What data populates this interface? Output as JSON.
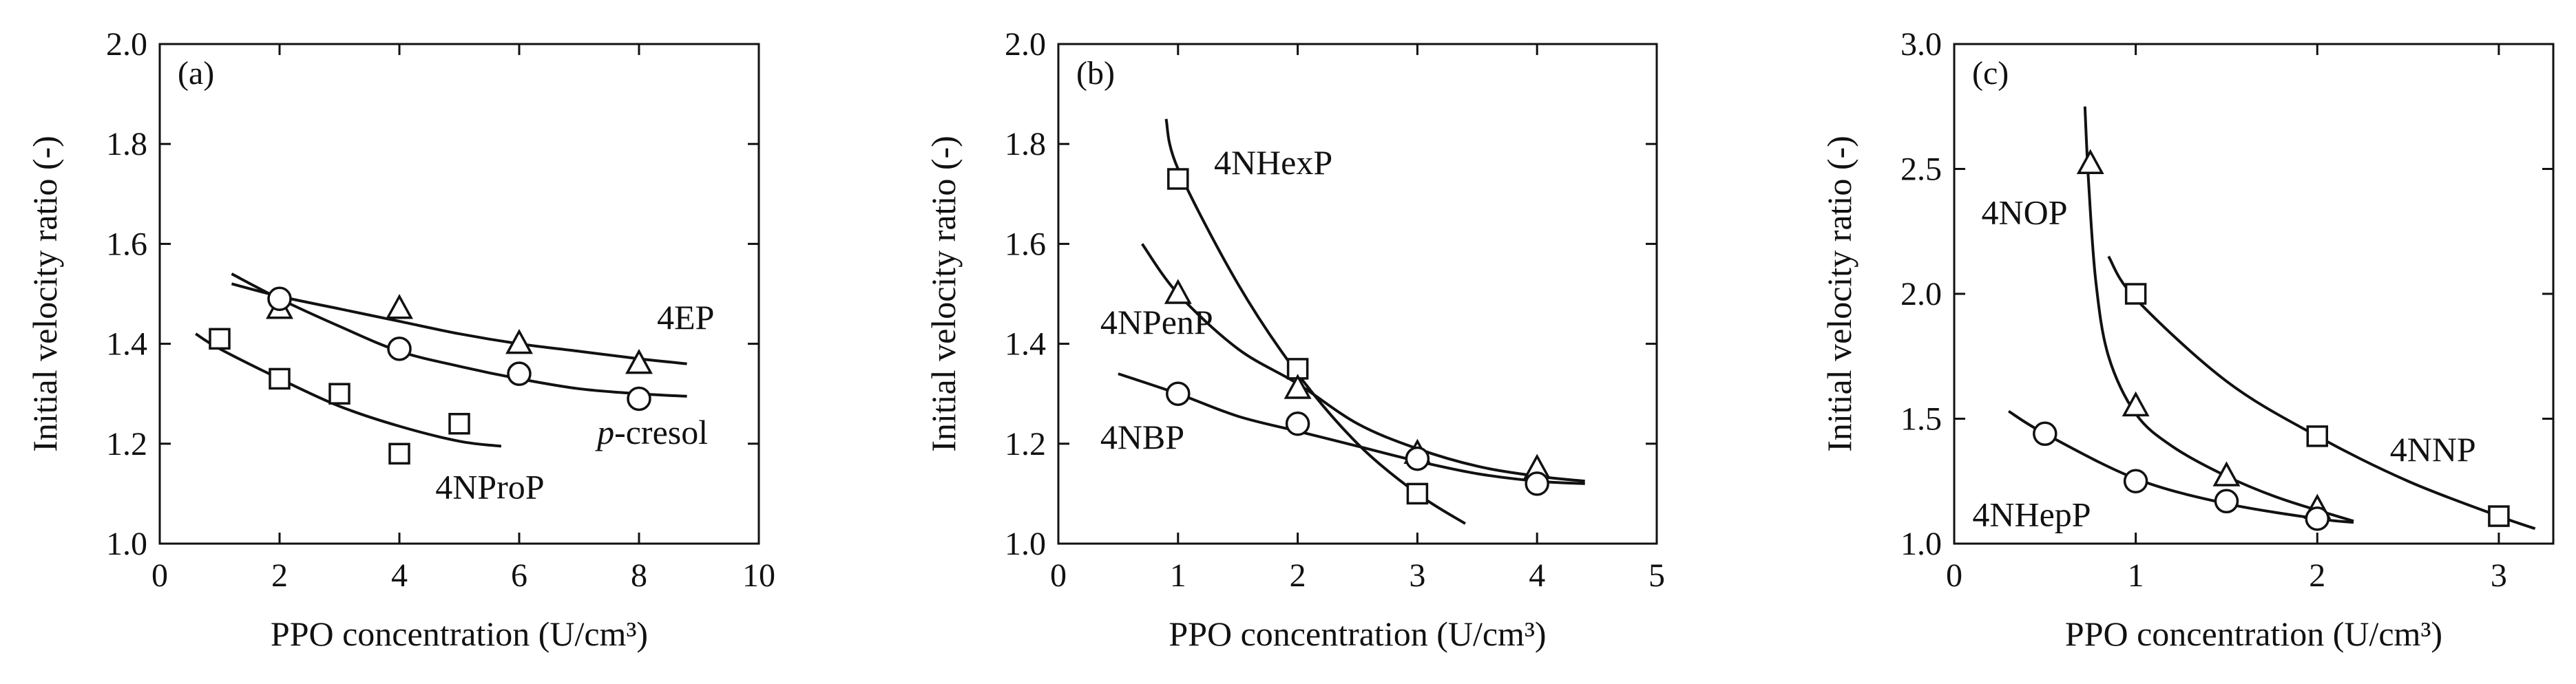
{
  "chart_data": [
    {
      "type": "scatter",
      "panel": "(a)",
      "xlabel": "PPO concentration (U/cm³)",
      "ylabel": "Initial velocity ratio (-)",
      "xlim": [
        0,
        10
      ],
      "ylim": [
        1.0,
        2.0
      ],
      "xticks": [
        0,
        2,
        4,
        6,
        8,
        10
      ],
      "yticks": [
        1.0,
        1.2,
        1.4,
        1.6,
        1.8,
        2.0
      ],
      "xtick_labels": [
        "0",
        "2",
        "4",
        "6",
        "8",
        "10"
      ],
      "ytick_labels": [
        "1.0",
        "1.2",
        "1.4",
        "1.6",
        "1.8",
        "2.0"
      ],
      "series": [
        {
          "name": "4EP",
          "label_parts": [
            "4EP"
          ],
          "marker": "triangle",
          "x": [
            2,
            4,
            6,
            8
          ],
          "y": [
            1.47,
            1.47,
            1.4,
            1.36
          ],
          "fit_x": [
            1.2,
            2,
            3,
            4,
            5,
            6,
            7,
            8,
            8.8
          ],
          "fit_y": [
            1.52,
            1.495,
            1.47,
            1.445,
            1.42,
            1.4,
            1.385,
            1.37,
            1.36
          ],
          "label_pos": [
            8.3,
            1.43
          ]
        },
        {
          "name": "p-cresol",
          "label_parts": [
            "p",
            "-cresol"
          ],
          "marker": "circle",
          "x": [
            2,
            4,
            6,
            8
          ],
          "y": [
            1.49,
            1.39,
            1.34,
            1.29
          ],
          "fit_x": [
            1.2,
            2,
            3,
            4,
            5,
            6,
            7,
            8,
            8.8
          ],
          "fit_y": [
            1.54,
            1.49,
            1.435,
            1.385,
            1.355,
            1.33,
            1.31,
            1.3,
            1.295
          ],
          "label_pos": [
            7.3,
            1.2
          ]
        },
        {
          "name": "4NProP",
          "label_parts": [
            "4NProP"
          ],
          "marker": "square",
          "x": [
            1,
            2,
            3,
            4,
            5
          ],
          "y": [
            1.41,
            1.33,
            1.3,
            1.18,
            1.24
          ],
          "fit_x": [
            0.6,
            1,
            2,
            3,
            4,
            5,
            5.7
          ],
          "fit_y": [
            1.42,
            1.39,
            1.33,
            1.275,
            1.235,
            1.205,
            1.195
          ],
          "label_pos": [
            4.6,
            1.09
          ]
        }
      ]
    },
    {
      "type": "scatter",
      "panel": "(b)",
      "xlabel": "PPO concentration (U/cm³)",
      "ylabel": "Initial velocity ratio (-)",
      "xlim": [
        0,
        5
      ],
      "ylim": [
        1.0,
        2.0
      ],
      "xticks": [
        0,
        1,
        2,
        3,
        4,
        5
      ],
      "yticks": [
        1.0,
        1.2,
        1.4,
        1.6,
        1.8,
        2.0
      ],
      "xtick_labels": [
        "0",
        "1",
        "2",
        "3",
        "4",
        "5"
      ],
      "ytick_labels": [
        "1.0",
        "1.2",
        "1.4",
        "1.6",
        "1.8",
        "2.0"
      ],
      "series": [
        {
          "name": "4NHexP",
          "label_parts": [
            "4NHexP"
          ],
          "marker": "square",
          "x": [
            1,
            2,
            3
          ],
          "y": [
            1.73,
            1.35,
            1.1
          ],
          "fit_x": [
            0.9,
            1,
            1.5,
            2,
            2.5,
            3,
            3.4
          ],
          "fit_y": [
            1.85,
            1.75,
            1.52,
            1.34,
            1.2,
            1.1,
            1.04
          ],
          "label_pos": [
            1.3,
            1.74
          ]
        },
        {
          "name": "4NPenP",
          "label_parts": [
            "4NPenP"
          ],
          "marker": "triangle",
          "x": [
            1,
            2,
            3,
            4
          ],
          "y": [
            1.5,
            1.31,
            1.18,
            1.15
          ],
          "fit_x": [
            0.7,
            1,
            1.5,
            2,
            2.5,
            3,
            3.5,
            4,
            4.4
          ],
          "fit_y": [
            1.6,
            1.5,
            1.39,
            1.32,
            1.24,
            1.19,
            1.155,
            1.135,
            1.125
          ],
          "label_pos": [
            0.35,
            1.42
          ]
        },
        {
          "name": "4NBP",
          "label_parts": [
            "4NBP"
          ],
          "marker": "circle",
          "x": [
            1,
            2,
            3,
            4
          ],
          "y": [
            1.3,
            1.24,
            1.17,
            1.12
          ],
          "fit_x": [
            0.5,
            1,
            1.5,
            2,
            2.5,
            3,
            3.5,
            4,
            4.4
          ],
          "fit_y": [
            1.34,
            1.3,
            1.255,
            1.225,
            1.195,
            1.165,
            1.14,
            1.125,
            1.12
          ],
          "label_pos": [
            0.35,
            1.19
          ]
        }
      ]
    },
    {
      "type": "scatter",
      "panel": "(c)",
      "xlabel": "PPO concentration (U/cm³)",
      "ylabel": "Initial velocity ratio (-)",
      "xlim": [
        0,
        3.3
      ],
      "ylim": [
        1.0,
        3.0
      ],
      "xticks": [
        0,
        1,
        2,
        3
      ],
      "yticks": [
        1.0,
        1.5,
        2.0,
        2.5,
        3.0
      ],
      "xtick_labels": [
        "0",
        "1",
        "2",
        "3"
      ],
      "ytick_labels": [
        "1.0",
        "1.5",
        "2.0",
        "2.5",
        "3.0"
      ],
      "series": [
        {
          "name": "4NOP",
          "label_parts": [
            "4NOP"
          ],
          "marker": "triangle",
          "x": [
            0.75,
            1,
            1.5,
            2
          ],
          "y": [
            2.52,
            1.55,
            1.27,
            1.14
          ],
          "fit_x": [
            0.72,
            0.74,
            0.78,
            0.85,
            1,
            1.2,
            1.5,
            1.8,
            2.2
          ],
          "fit_y": [
            2.75,
            2.45,
            2.05,
            1.75,
            1.52,
            1.39,
            1.27,
            1.18,
            1.09
          ],
          "label_pos": [
            0.15,
            2.28
          ]
        },
        {
          "name": "4NNP",
          "label_parts": [
            "4NNP"
          ],
          "marker": "square",
          "x": [
            1,
            2,
            3
          ],
          "y": [
            2.0,
            1.43,
            1.11
          ],
          "fit_x": [
            0.85,
            1,
            1.5,
            2,
            2.5,
            3,
            3.2
          ],
          "fit_y": [
            2.15,
            1.98,
            1.65,
            1.43,
            1.25,
            1.11,
            1.06
          ],
          "label_pos": [
            2.4,
            1.33
          ]
        },
        {
          "name": "4NHepP",
          "label_parts": [
            "4NHepP"
          ],
          "marker": "circle",
          "x": [
            0.5,
            1,
            1.5,
            2
          ],
          "y": [
            1.44,
            1.25,
            1.17,
            1.1
          ],
          "fit_x": [
            0.3,
            0.5,
            1,
            1.5,
            2,
            2.2
          ],
          "fit_y": [
            1.53,
            1.44,
            1.26,
            1.16,
            1.1,
            1.085
          ],
          "label_pos": [
            0.1,
            1.07
          ]
        }
      ]
    }
  ]
}
